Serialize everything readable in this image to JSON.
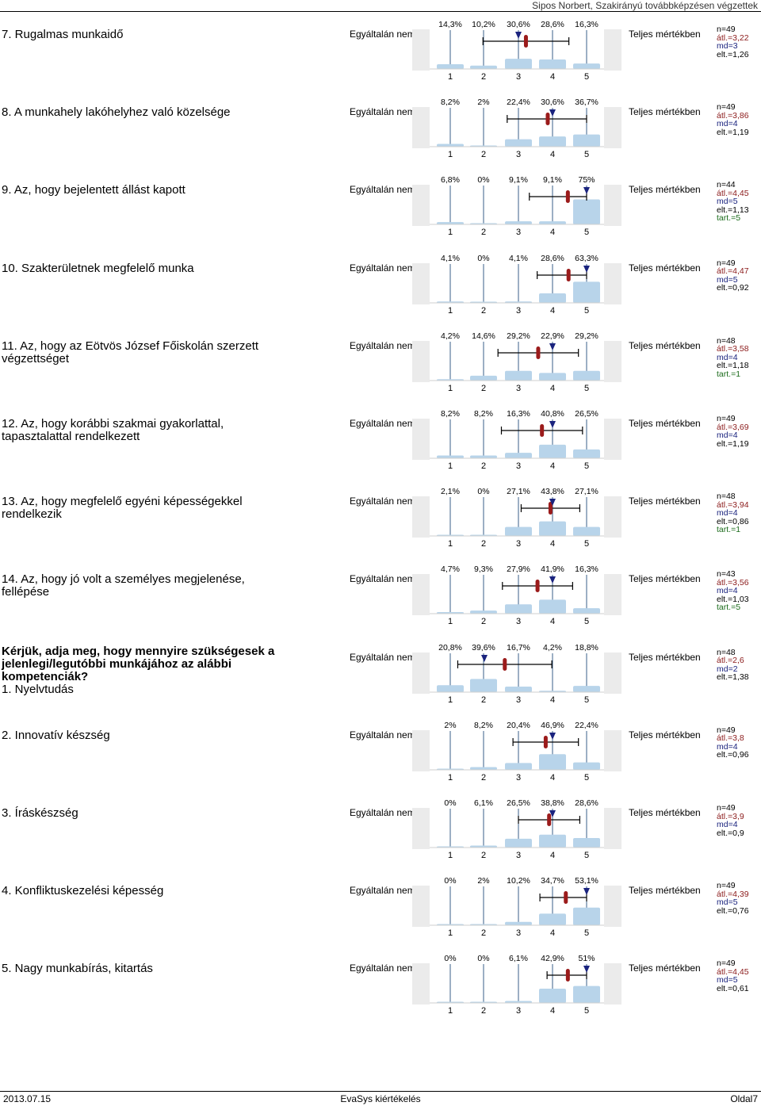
{
  "header": {
    "right_text": "Sipos Norbert, Szakirányú továbbképzésen végzettek"
  },
  "footer": {
    "date": "2013.07.15",
    "center": "EvaSys kiértékelés",
    "page": "Oldal7"
  },
  "left_label": "Egyáltalán nem",
  "right_label": "Teljes mértékben",
  "scale": [
    "1",
    "2",
    "3",
    "4",
    "5"
  ],
  "chart_data": [
    {
      "type": "bar",
      "title": "7. Rugalmas munkaidő",
      "categories": [
        "1",
        "2",
        "3",
        "4",
        "5"
      ],
      "values": [
        14.3,
        10.2,
        30.6,
        28.6,
        16.3
      ],
      "value_labels": [
        "14,3%",
        "10,2%",
        "30,6%",
        "28,6%",
        "16,3%"
      ],
      "mean": 3.22,
      "median": 3,
      "sd": 1.26,
      "stats": [
        "n=49",
        "átl.=3,22",
        "md=3",
        "elt.=1,26"
      ]
    },
    {
      "type": "bar",
      "title": "8. A munkahely lakóhelyhez való közelsége",
      "categories": [
        "1",
        "2",
        "3",
        "4",
        "5"
      ],
      "values": [
        8.2,
        2,
        22.4,
        30.6,
        36.7
      ],
      "value_labels": [
        "8,2%",
        "2%",
        "22,4%",
        "30,6%",
        "36,7%"
      ],
      "mean": 3.86,
      "median": 4,
      "sd": 1.19,
      "stats": [
        "n=49",
        "átl.=3,86",
        "md=4",
        "elt.=1,19"
      ]
    },
    {
      "type": "bar",
      "title": "9. Az, hogy bejelentett állást kapott",
      "categories": [
        "1",
        "2",
        "3",
        "4",
        "5"
      ],
      "values": [
        6.8,
        0,
        9.1,
        9.1,
        75
      ],
      "value_labels": [
        "6,8%",
        "0%",
        "9,1%",
        "9,1%",
        "75%"
      ],
      "mean": 4.45,
      "median": 5,
      "sd": 1.13,
      "stats": [
        "n=44",
        "átl.=4,45",
        "md=5",
        "elt.=1,13",
        "tart.=5"
      ]
    },
    {
      "type": "bar",
      "title": "10. Szakterületnek megfelelő munka",
      "categories": [
        "1",
        "2",
        "3",
        "4",
        "5"
      ],
      "values": [
        4.1,
        0,
        4.1,
        28.6,
        63.3
      ],
      "value_labels": [
        "4,1%",
        "0%",
        "4,1%",
        "28,6%",
        "63,3%"
      ],
      "mean": 4.47,
      "median": 5,
      "sd": 0.92,
      "stats": [
        "n=49",
        "átl.=4,47",
        "md=5",
        "elt.=0,92"
      ]
    },
    {
      "type": "bar",
      "title": "11. Az, hogy az Eötvös József Főiskolán szerzett végzettséget",
      "categories": [
        "1",
        "2",
        "3",
        "4",
        "5"
      ],
      "values": [
        4.2,
        14.6,
        29.2,
        22.9,
        29.2
      ],
      "value_labels": [
        "4,2%",
        "14,6%",
        "29,2%",
        "22,9%",
        "29,2%"
      ],
      "mean": 3.58,
      "median": 4,
      "sd": 1.18,
      "stats": [
        "n=48",
        "átl.=3,58",
        "md=4",
        "elt.=1,18",
        "tart.=1"
      ]
    },
    {
      "type": "bar",
      "title": "12. Az, hogy korábbi szakmai gyakorlattal, tapasztalattal rendelkezett",
      "categories": [
        "1",
        "2",
        "3",
        "4",
        "5"
      ],
      "values": [
        8.2,
        8.2,
        16.3,
        40.8,
        26.5
      ],
      "value_labels": [
        "8,2%",
        "8,2%",
        "16,3%",
        "40,8%",
        "26,5%"
      ],
      "mean": 3.69,
      "median": 4,
      "sd": 1.19,
      "stats": [
        "n=49",
        "átl.=3,69",
        "md=4",
        "elt.=1,19"
      ]
    },
    {
      "type": "bar",
      "title": "13. Az, hogy megfelelő egyéni képességekkel rendelkezik",
      "categories": [
        "1",
        "2",
        "3",
        "4",
        "5"
      ],
      "values": [
        2.1,
        0,
        27.1,
        43.8,
        27.1
      ],
      "value_labels": [
        "2,1%",
        "0%",
        "27,1%",
        "43,8%",
        "27,1%"
      ],
      "mean": 3.94,
      "median": 4,
      "sd": 0.86,
      "stats": [
        "n=48",
        "átl.=3,94",
        "md=4",
        "elt.=0,86",
        "tart.=1"
      ]
    },
    {
      "type": "bar",
      "title": "14. Az, hogy jó volt a személyes megjelenése, fellépése",
      "categories": [
        "1",
        "2",
        "3",
        "4",
        "5"
      ],
      "values": [
        4.7,
        9.3,
        27.9,
        41.9,
        16.3
      ],
      "value_labels": [
        "4,7%",
        "9,3%",
        "27,9%",
        "41,9%",
        "16,3%"
      ],
      "mean": 3.56,
      "median": 4,
      "sd": 1.03,
      "stats": [
        "n=43",
        "átl.=3,56",
        "md=4",
        "elt.=1,03",
        "tart.=5"
      ]
    },
    {
      "type": "bar",
      "title": "Kérjük, adja meg, hogy mennyire szükségesek a jelenlegi/legutóbbi munkájához az alábbi kompetenciák?",
      "subtitle": "1. Nyelvtudás",
      "categories": [
        "1",
        "2",
        "3",
        "4",
        "5"
      ],
      "values": [
        20.8,
        39.6,
        16.7,
        4.2,
        18.8
      ],
      "value_labels": [
        "20,8%",
        "39,6%",
        "16,7%",
        "4,2%",
        "18,8%"
      ],
      "mean": 2.6,
      "median": 2,
      "sd": 1.38,
      "stats": [
        "n=48",
        "átl.=2,6",
        "md=2",
        "elt.=1,38"
      ]
    },
    {
      "type": "bar",
      "title": "2. Innovatív készség",
      "categories": [
        "1",
        "2",
        "3",
        "4",
        "5"
      ],
      "values": [
        2,
        8.2,
        20.4,
        46.9,
        22.4
      ],
      "value_labels": [
        "2%",
        "8,2%",
        "20,4%",
        "46,9%",
        "22,4%"
      ],
      "mean": 3.8,
      "median": 4,
      "sd": 0.96,
      "stats": [
        "n=49",
        "átl.=3,8",
        "md=4",
        "elt.=0,96"
      ]
    },
    {
      "type": "bar",
      "title": "3. Íráskészség",
      "categories": [
        "1",
        "2",
        "3",
        "4",
        "5"
      ],
      "values": [
        0,
        6.1,
        26.5,
        38.8,
        28.6
      ],
      "value_labels": [
        "0%",
        "6,1%",
        "26,5%",
        "38,8%",
        "28,6%"
      ],
      "mean": 3.9,
      "median": 4,
      "sd": 0.9,
      "stats": [
        "n=49",
        "átl.=3,9",
        "md=4",
        "elt.=0,9"
      ]
    },
    {
      "type": "bar",
      "title": "4. Konfliktuskezelési képesség",
      "categories": [
        "1",
        "2",
        "3",
        "4",
        "5"
      ],
      "values": [
        0,
        2,
        10.2,
        34.7,
        53.1
      ],
      "value_labels": [
        "0%",
        "2%",
        "10,2%",
        "34,7%",
        "53,1%"
      ],
      "mean": 4.39,
      "median": 5,
      "sd": 0.76,
      "stats": [
        "n=49",
        "átl.=4,39",
        "md=5",
        "elt.=0,76"
      ]
    },
    {
      "type": "bar",
      "title": "5. Nagy munkabírás, kitartás",
      "categories": [
        "1",
        "2",
        "3",
        "4",
        "5"
      ],
      "values": [
        0,
        0,
        6.1,
        42.9,
        51
      ],
      "value_labels": [
        "0%",
        "0%",
        "6,1%",
        "42,9%",
        "51%"
      ],
      "mean": 4.45,
      "median": 5,
      "sd": 0.61,
      "stats": [
        "n=49",
        "átl.=4,45",
        "md=5",
        "elt.=0,61"
      ]
    }
  ],
  "colors": {
    "bar": "#b8d4ea",
    "mean": "#9b1b1b",
    "median": "#1a237e",
    "line": "#3a5f8a",
    "side": "#ebebeb"
  }
}
